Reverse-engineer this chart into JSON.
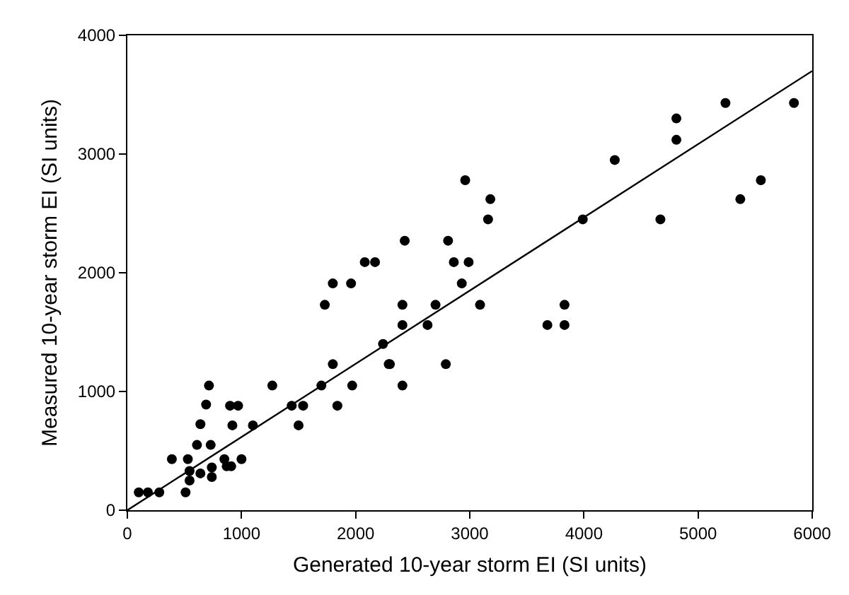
{
  "chart_data": {
    "type": "scatter",
    "xlabel": "Generated 10-year storm EI (SI units)",
    "ylabel": "Measured 10-year storm EI (SI units)",
    "xlim": [
      0,
      6000
    ],
    "ylim": [
      0,
      4000
    ],
    "xticks": [
      0,
      1000,
      2000,
      3000,
      4000,
      5000,
      6000
    ],
    "yticks": [
      0,
      1000,
      2000,
      3000,
      4000
    ],
    "grid": false,
    "marker": "circle",
    "series": [
      {
        "color": "#000000",
        "x": [
          100,
          180,
          280,
          390,
          510,
          530,
          545,
          545,
          640,
          740,
          740,
          610,
          730,
          640,
          690,
          715,
          850,
          870,
          910,
          1000,
          900,
          970,
          920,
          1100,
          1270,
          1440,
          1540,
          1500,
          1700,
          1800,
          1840,
          1970,
          2240,
          2300,
          2960,
          3180,
          3160,
          2430,
          2810,
          2080,
          2170,
          2860,
          2990,
          1800,
          1960,
          2930,
          1730,
          2410,
          2700,
          3090,
          3830,
          2410,
          2630,
          3680,
          3830,
          2290,
          2790,
          2410,
          3990,
          5240,
          5840,
          4810,
          4810,
          4270,
          5550,
          5370,
          4670
        ],
        "values": [
          150,
          150,
          150,
          430,
          150,
          430,
          330,
          250,
          310,
          360,
          280,
          550,
          550,
          725,
          890,
          1050,
          430,
          370,
          370,
          430,
          880,
          880,
          715,
          715,
          1050,
          880,
          880,
          715,
          1050,
          1230,
          880,
          1050,
          1400,
          1230,
          2780,
          2620,
          2450,
          2270,
          2270,
          2090,
          2090,
          2090,
          2090,
          1910,
          1910,
          1910,
          1730,
          1730,
          1730,
          1730,
          1730,
          1560,
          1560,
          1560,
          1560,
          1230,
          1230,
          1050,
          2450,
          3430,
          3430,
          3300,
          3120,
          2950,
          2780,
          2620,
          2450
        ]
      },
      {
        "type": "line",
        "color": "#000000",
        "marker": "none",
        "line_style": "solid",
        "x": [
          0,
          6000
        ],
        "values": [
          0,
          3700
        ]
      }
    ]
  }
}
